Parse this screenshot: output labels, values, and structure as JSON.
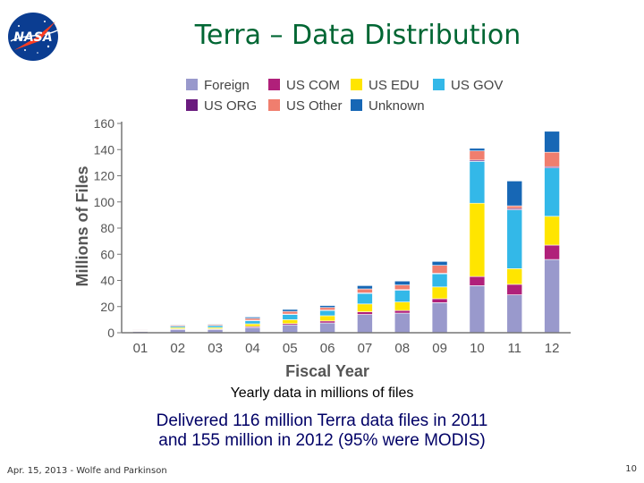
{
  "slide": {
    "title": "Terra – Data Distribution",
    "logo_text": "NASA",
    "logo_icon": "nasa-meatball-logo",
    "caption": "Yearly data in millions of files",
    "summary_line1": "Delivered 116 million Terra data files in 2011",
    "summary_line2": "and 155 million in 2012 (95% were MODIS)",
    "footer_left": "Apr. 15, 2013 - Wolfe and Parkinson",
    "page_number": "10",
    "title_color": "#006633",
    "summary_color": "#000066"
  },
  "chart_data": {
    "type": "bar",
    "stacked": true,
    "categories": [
      "01",
      "02",
      "03",
      "04",
      "05",
      "06",
      "07",
      "08",
      "09",
      "10",
      "11",
      "12"
    ],
    "xlabel": "Fiscal Year",
    "ylabel": "Millions of Files",
    "ylim": [
      0,
      160
    ],
    "yticks": [
      0,
      20,
      40,
      60,
      80,
      100,
      120,
      140,
      160
    ],
    "grid": false,
    "legend": "top",
    "series": [
      {
        "name": "Foreign",
        "color": "#9999CC",
        "values": [
          1.0,
          2.5,
          2.5,
          4.0,
          6.0,
          7.5,
          14.0,
          15.0,
          23.0,
          36.0,
          29.0,
          56.0
        ]
      },
      {
        "name": "US COM",
        "color": "#B0207A",
        "values": [
          0.3,
          0.5,
          0.5,
          0.8,
          1.0,
          1.5,
          2.0,
          2.0,
          3.0,
          7.0,
          8.0,
          11.0
        ]
      },
      {
        "name": "US EDU",
        "color": "#FFE500",
        "values": [
          0.3,
          1.0,
          1.0,
          2.0,
          3.0,
          4.0,
          6.0,
          6.5,
          9.0,
          56.0,
          12.0,
          22.0
        ]
      },
      {
        "name": "US GOV",
        "color": "#33B8E8",
        "values": [
          0.4,
          1.0,
          1.5,
          2.5,
          4.0,
          4.0,
          8.0,
          9.0,
          10.0,
          32.0,
          45.0,
          37.0
        ]
      },
      {
        "name": "US ORG",
        "color": "#6A1B7E",
        "values": [
          0.0,
          0.0,
          0.0,
          0.2,
          0.3,
          0.3,
          0.5,
          0.5,
          0.5,
          1.0,
          1.0,
          1.0
        ]
      },
      {
        "name": "US Other",
        "color": "#F07E6E",
        "values": [
          0.5,
          0.8,
          0.8,
          1.5,
          2.0,
          2.0,
          3.0,
          3.5,
          6.0,
          7.0,
          2.0,
          11.0
        ]
      },
      {
        "name": "Unknown",
        "color": "#1767B5",
        "values": [
          0.2,
          0.5,
          0.5,
          1.0,
          1.5,
          1.5,
          2.5,
          3.0,
          3.0,
          2.0,
          19.0,
          16.0
        ]
      }
    ]
  }
}
